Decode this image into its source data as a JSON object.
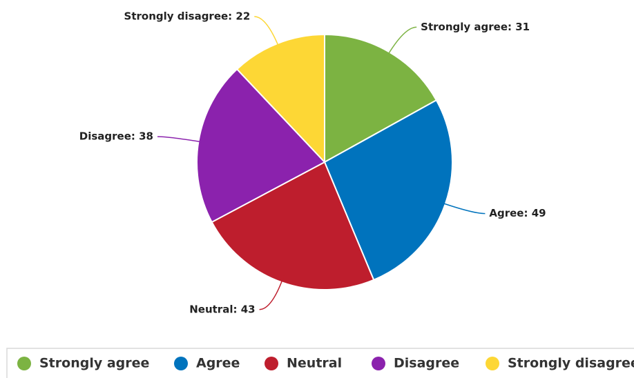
{
  "chart_data": {
    "type": "pie",
    "categories": [
      "Strongly agree",
      "Agree",
      "Neutral",
      "Disagree",
      "Strongly disagree"
    ],
    "values": [
      31,
      49,
      43,
      38,
      22
    ],
    "value_labels": [
      "Strongly agree: 31",
      "Agree: 49",
      "Neutral: 43",
      "Disagree: 38",
      "Strongly disagree: 22"
    ],
    "colors": [
      "#7cb342",
      "#0073bd",
      "#be1e2d",
      "#8b22ad",
      "#fdd735"
    ],
    "legend": "bottom"
  }
}
